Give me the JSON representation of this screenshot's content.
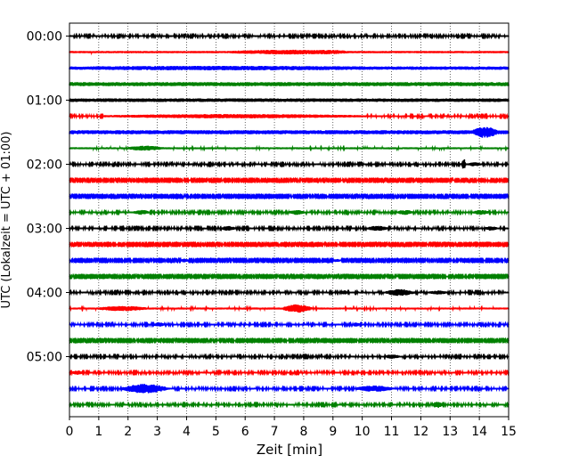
{
  "chart_data": {
    "type": "line",
    "title": "",
    "xlabel": "Zeit  [min]",
    "ylabel": "UTC (Lokalzeit = UTC + 01:00)",
    "xlim": [
      0,
      15
    ],
    "x_ticks": [
      0,
      1,
      2,
      3,
      4,
      5,
      6,
      7,
      8,
      9,
      10,
      11,
      12,
      13,
      14,
      15
    ],
    "x_tick_labels": [
      "0",
      "1",
      "2",
      "3",
      "4",
      "5",
      "6",
      "7",
      "8",
      "9",
      "10",
      "11",
      "12",
      "13",
      "14",
      "15"
    ],
    "y_tick_labels": [
      "00:00",
      "01:00",
      "02:00",
      "03:00",
      "04:00",
      "05:00"
    ],
    "y_tick_trace_index": [
      0,
      4,
      8,
      12,
      16,
      20
    ],
    "trace_interval_min": 15,
    "grid": "vertical dotted",
    "colors": [
      "#000000",
      "#ff0000",
      "#0000ff",
      "#008000"
    ],
    "series": [
      {
        "name": "00:00",
        "color": "#000000",
        "base_amp": 0.35,
        "events": []
      },
      {
        "name": "00:15",
        "color": "#ff0000",
        "base_amp": 0.45,
        "events": [
          [
            5.5,
            11.5,
            0.55
          ],
          [
            8.5,
            10,
            0.25
          ]
        ]
      },
      {
        "name": "00:30",
        "color": "#0000ff",
        "base_amp": 0.7,
        "events": [
          [
            0.6,
            15,
            0.25
          ]
        ]
      },
      {
        "name": "00:45",
        "color": "#008000",
        "base_amp": 0.85,
        "events": []
      },
      {
        "name": "01:00",
        "color": "#000000",
        "base_amp": 0.75,
        "events": []
      },
      {
        "name": "01:15",
        "color": "#ff0000",
        "base_amp": 0.35,
        "events": [
          [
            1.2,
            15,
            0.55
          ]
        ]
      },
      {
        "name": "01:30",
        "color": "#0000ff",
        "base_amp": 0.85,
        "events": [
          [
            13.8,
            15,
            1.6
          ]
        ]
      },
      {
        "name": "01:45",
        "color": "#008000",
        "base_amp": 0.4,
        "events": [
          [
            2,
            3.8,
            0.7
          ]
        ]
      },
      {
        "name": "02:00",
        "color": "#000000",
        "base_amp": 0.35,
        "events": [
          [
            13.4,
            13.6,
            2.2
          ],
          [
            13.6,
            14.3,
            0.5
          ]
        ]
      },
      {
        "name": "02:15",
        "color": "#ff0000",
        "base_amp": 0.3,
        "events": []
      },
      {
        "name": "02:30",
        "color": "#0000ff",
        "base_amp": 0.3,
        "events": []
      },
      {
        "name": "02:45",
        "color": "#008000",
        "base_amp": 0.35,
        "events": [
          [
            2.2,
            3,
            0.7
          ],
          [
            7.5,
            8.3,
            0.7
          ],
          [
            11.2,
            12,
            0.7
          ],
          [
            13.8,
            14.6,
            0.7
          ]
        ]
      },
      {
        "name": "03:00",
        "color": "#000000",
        "base_amp": 0.35,
        "events": [
          [
            5.2,
            5.9,
            0.7
          ],
          [
            10.2,
            11.2,
            0.8
          ],
          [
            14.2,
            14.8,
            0.6
          ]
        ]
      },
      {
        "name": "03:15",
        "color": "#ff0000",
        "base_amp": 0.3,
        "events": []
      },
      {
        "name": "03:30",
        "color": "#0000ff",
        "base_amp": 0.3,
        "events": [
          [
            3.8,
            4.2,
            0.5
          ],
          [
            9,
            9.4,
            0.4
          ]
        ]
      },
      {
        "name": "03:45",
        "color": "#008000",
        "base_amp": 0.3,
        "events": []
      },
      {
        "name": "04:00",
        "color": "#000000",
        "base_amp": 0.35,
        "events": [
          [
            9.3,
            9.6,
            0.6
          ],
          [
            10.8,
            12.3,
            1.1
          ],
          [
            12.3,
            13.2,
            0.5
          ]
        ]
      },
      {
        "name": "04:15",
        "color": "#ff0000",
        "base_amp": 0.4,
        "events": [
          [
            1,
            3.5,
            0.7
          ],
          [
            7.3,
            8.8,
            1.4
          ]
        ]
      },
      {
        "name": "04:30",
        "color": "#0000ff",
        "base_amp": 0.35,
        "events": [
          [
            2.9,
            3.4,
            0.6
          ],
          [
            9.7,
            10,
            0.8
          ]
        ]
      },
      {
        "name": "04:45",
        "color": "#008000",
        "base_amp": 0.3,
        "events": []
      },
      {
        "name": "05:00",
        "color": "#000000",
        "base_amp": 0.35,
        "events": [
          [
            10.8,
            11.5,
            0.6
          ]
        ]
      },
      {
        "name": "05:15",
        "color": "#ff0000",
        "base_amp": 0.35,
        "events": [
          [
            0.1,
            0.6,
            0.6
          ]
        ]
      },
      {
        "name": "05:30",
        "color": "#0000ff",
        "base_amp": 0.35,
        "events": [
          [
            1.8,
            4.2,
            1.7
          ],
          [
            9.8,
            11.7,
            1.0
          ]
        ]
      },
      {
        "name": "05:45",
        "color": "#008000",
        "base_amp": 0.35,
        "events": [
          [
            12.4,
            12.9,
            1.1
          ]
        ]
      }
    ]
  }
}
